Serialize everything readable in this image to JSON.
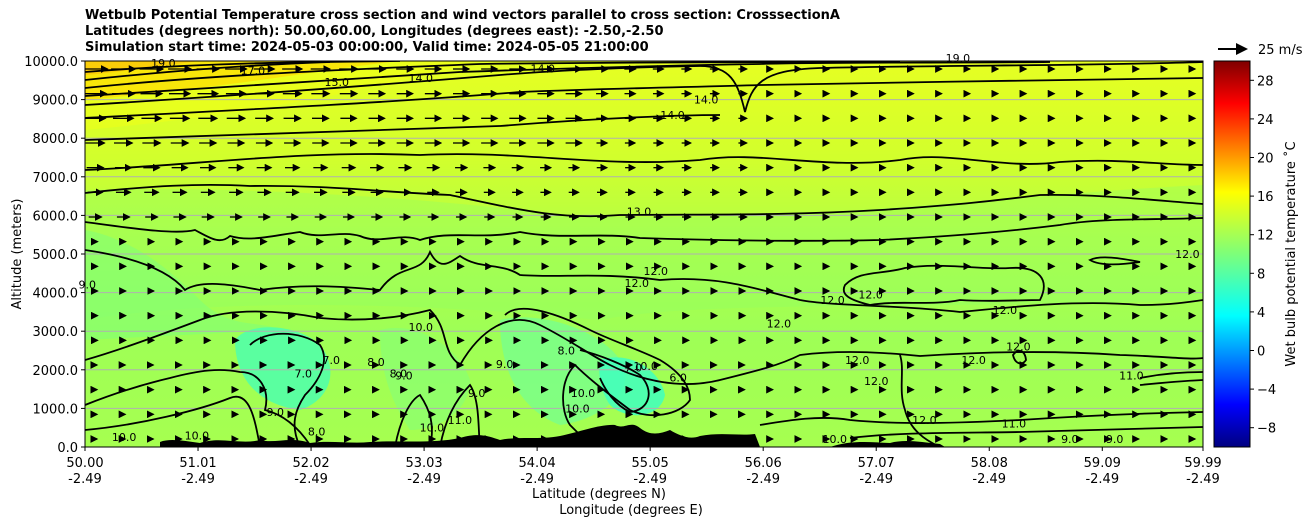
{
  "chart_data": {
    "type": "heatmap",
    "title_lines": [
      "Wetbulb Potential Temperature cross section and wind vectors parallel to cross section: CrosssectionA",
      "Latitudes (degrees north): 50.00,60.00, Longitudes (degrees east): -2.50,-2.50",
      "Simulation start time: 2024-05-03 00:00:00, Valid time: 2024-05-05 21:00:00"
    ],
    "ylabel": "Altitude (meters)",
    "xlabel": "Latitude (degrees N)",
    "xlabel2": "Longitude (degrees E)",
    "ylim": [
      0,
      10000
    ],
    "y_ticks": [
      0,
      1000,
      2000,
      3000,
      4000,
      5000,
      6000,
      7000,
      8000,
      9000,
      10000
    ],
    "y_tick_labels": [
      "0.0",
      "1000.0",
      "2000.0",
      "3000.0",
      "4000.0",
      "5000.0",
      "6000.0",
      "7000.0",
      "8000.0",
      "9000.0",
      "10000.0"
    ],
    "x_ticks": [
      {
        "lat": "50.00",
        "lon": "-2.49"
      },
      {
        "lat": "51.01",
        "lon": "-2.49"
      },
      {
        "lat": "52.02",
        "lon": "-2.49"
      },
      {
        "lat": "53.03",
        "lon": "-2.49"
      },
      {
        "lat": "54.04",
        "lon": "-2.49"
      },
      {
        "lat": "55.05",
        "lon": "-2.49"
      },
      {
        "lat": "56.06",
        "lon": "-2.49"
      },
      {
        "lat": "57.07",
        "lon": "-2.49"
      },
      {
        "lat": "58.08",
        "lon": "-2.49"
      },
      {
        "lat": "59.09",
        "lon": "-2.49"
      },
      {
        "lat": "59.99",
        "lon": "-2.49"
      }
    ],
    "colorbar": {
      "label": "Wet bulb potential temperature ˚C",
      "range": [
        -10,
        30
      ],
      "ticks": [
        -8,
        -4,
        0,
        4,
        8,
        12,
        16,
        20,
        24,
        28
      ],
      "tick_labels": [
        "−8",
        "−4",
        "0",
        "4",
        "8",
        "12",
        "16",
        "20",
        "24",
        "28"
      ],
      "colormap": "jet"
    },
    "wind_key": {
      "label": "25 m/s"
    },
    "grid": true,
    "contour_labels": [
      {
        "text": "19.0",
        "lat": 50.7,
        "alt": 9850
      },
      {
        "text": "17.0",
        "lat": 51.5,
        "alt": 9650
      },
      {
        "text": "15.0",
        "lat": 52.25,
        "alt": 9350
      },
      {
        "text": "14.0",
        "lat": 53.0,
        "alt": 9450
      },
      {
        "text": "14.0",
        "lat": 54.09,
        "alt": 9700
      },
      {
        "text": "19.0",
        "lat": 57.8,
        "alt": 9980
      },
      {
        "text": "14.0",
        "lat": 55.25,
        "alt": 8500
      },
      {
        "text": "14.0",
        "lat": 55.55,
        "alt": 8900
      },
      {
        "text": "13.0",
        "lat": 54.95,
        "alt": 6000
      },
      {
        "text": "12.0",
        "lat": 54.93,
        "alt": 4150
      },
      {
        "text": "12.0",
        "lat": 55.1,
        "alt": 4450
      },
      {
        "text": "12.0",
        "lat": 56.68,
        "alt": 3700
      },
      {
        "text": "12.0",
        "lat": 57.02,
        "alt": 3850
      },
      {
        "text": "12.0",
        "lat": 56.9,
        "alt": 2150
      },
      {
        "text": "12.0",
        "lat": 57.07,
        "alt": 1600
      },
      {
        "text": "12.0",
        "lat": 56.2,
        "alt": 3100
      },
      {
        "text": "12.0",
        "lat": 58.22,
        "alt": 3450
      },
      {
        "text": "12.0",
        "lat": 58.34,
        "alt": 2500
      },
      {
        "text": "12.0",
        "lat": 57.94,
        "alt": 2150
      },
      {
        "text": "12.0",
        "lat": 59.85,
        "alt": 4900
      },
      {
        "text": "12.0",
        "lat": 57.5,
        "alt": 600
      },
      {
        "text": "11.0",
        "lat": 59.35,
        "alt": 1750
      },
      {
        "text": "11.0",
        "lat": 58.3,
        "alt": 500
      },
      {
        "text": "11.0",
        "lat": 53.35,
        "alt": 600
      },
      {
        "text": "10.0",
        "lat": 53.0,
        "alt": 3000
      },
      {
        "text": "10.0",
        "lat": 53.1,
        "alt": 400
      },
      {
        "text": "10.0",
        "lat": 54.45,
        "alt": 1300
      },
      {
        "text": "10.0",
        "lat": 54.4,
        "alt": 900
      },
      {
        "text": "10.0",
        "lat": 55.01,
        "alt": 2000
      },
      {
        "text": "10.0",
        "lat": 56.7,
        "alt": 100
      },
      {
        "text": "10.0",
        "lat": 50.35,
        "alt": 150
      },
      {
        "text": "10.0",
        "lat": 51.0,
        "alt": 200
      },
      {
        "text": "9.0",
        "lat": 50.02,
        "alt": 4100
      },
      {
        "text": "9.0",
        "lat": 51.7,
        "alt": 800
      },
      {
        "text": "9.0",
        "lat": 53.75,
        "alt": 2050
      },
      {
        "text": "9.0",
        "lat": 53.5,
        "alt": 1300
      },
      {
        "text": "9.0",
        "lat": 52.85,
        "alt": 1750
      },
      {
        "text": "9.0",
        "lat": 58.8,
        "alt": 100
      },
      {
        "text": "9.0",
        "lat": 59.2,
        "alt": 100
      },
      {
        "text": "8.0",
        "lat": 52.6,
        "alt": 2100
      },
      {
        "text": "8.0",
        "lat": 52.8,
        "alt": 1800
      },
      {
        "text": "8.0",
        "lat": 54.3,
        "alt": 2400
      },
      {
        "text": "8.0",
        "lat": 52.07,
        "alt": 300
      },
      {
        "text": "7.0",
        "lat": 52.2,
        "alt": 2150
      },
      {
        "text": "7.0",
        "lat": 51.95,
        "alt": 1800
      },
      {
        "text": "7.0",
        "lat": 54.9,
        "alt": 1950
      },
      {
        "text": "6.0",
        "lat": 55.3,
        "alt": 1700
      }
    ]
  }
}
